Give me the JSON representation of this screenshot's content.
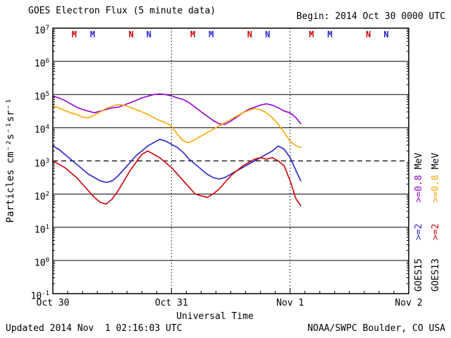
{
  "header": {
    "title": "GOES Electron Flux (5 minute data)",
    "begin": "Begin: 2014 Oct 30 0000 UTC"
  },
  "footer": {
    "updated": "Updated 2014 Nov  1 02:16:03 UTC",
    "credit": "NOAA/SWPC Boulder, CO USA"
  },
  "axes": {
    "y_title": "Particles cm⁻²s⁻¹sr⁻¹",
    "x_title": "Universal Time",
    "y_tick_exponents": [
      7,
      6,
      5,
      4,
      3,
      2,
      1,
      0,
      -1
    ],
    "x_tick_labels": [
      "Oct 30",
      "Oct 31",
      "Nov 1",
      "Nov 2"
    ]
  },
  "legend": {
    "columns": [
      {
        "satellite": "GOES15",
        "entries": [
          {
            "label": ">=2",
            "color": "#2222CC"
          },
          {
            "label": ">=0.8",
            "color": "#9400D3"
          }
        ],
        "unit": "MeV"
      },
      {
        "satellite": "GOES13",
        "entries": [
          {
            "label": ">=2",
            "color": "#CC0000"
          },
          {
            "label": ">=0.8",
            "color": "#FFA500"
          }
        ],
        "unit": "MeV"
      }
    ]
  },
  "markers": [
    {
      "label": "M",
      "day": 0.18,
      "color": "#CC0000"
    },
    {
      "label": "M",
      "day": 0.335,
      "color": "#2222CC"
    },
    {
      "label": "N",
      "day": 0.66,
      "color": "#CC0000"
    },
    {
      "label": "N",
      "day": 0.81,
      "color": "#2222CC"
    },
    {
      "label": "M",
      "day": 1.18,
      "color": "#CC0000"
    },
    {
      "label": "M",
      "day": 1.335,
      "color": "#2222CC"
    },
    {
      "label": "N",
      "day": 1.66,
      "color": "#CC0000"
    },
    {
      "label": "N",
      "day": 1.81,
      "color": "#2222CC"
    },
    {
      "label": "M",
      "day": 2.18,
      "color": "#CC0000"
    },
    {
      "label": "M",
      "day": 2.335,
      "color": "#2222CC"
    },
    {
      "label": "N",
      "day": 2.66,
      "color": "#CC0000"
    },
    {
      "label": "N",
      "day": 2.81,
      "color": "#2222CC"
    }
  ],
  "chart_data": {
    "type": "line",
    "title": "GOES Electron Flux (5 minute data)",
    "x_unit": "days since 2014 Oct 30 0000 UTC",
    "x_range": [
      0,
      3
    ],
    "y_scale": "log10",
    "y_range_exponents": [
      -1,
      7
    ],
    "ylabel": "Particles cm^-2 s^-1 sr^-1",
    "xlabel": "Universal Time",
    "threshold_flux": 1000,
    "day_boundaries": [
      1,
      2
    ],
    "grid": "decade-horizontal-solid, day-vertical-dotted",
    "x": [
      0,
      0.05,
      0.1,
      0.15,
      0.2,
      0.25,
      0.3,
      0.35,
      0.4,
      0.45,
      0.5,
      0.55,
      0.6,
      0.65,
      0.7,
      0.75,
      0.8,
      0.85,
      0.9,
      0.95,
      1,
      1.05,
      1.1,
      1.15,
      1.2,
      1.25,
      1.3,
      1.35,
      1.4,
      1.45,
      1.5,
      1.55,
      1.6,
      1.65,
      1.7,
      1.75,
      1.8,
      1.85,
      1.9,
      1.95,
      2,
      2.05,
      2.09
    ],
    "series": [
      {
        "name": "GOES15 >=0.8 MeV",
        "color": "#9400D3",
        "log10_flux": [
          4.95,
          4.9,
          4.82,
          4.72,
          4.62,
          4.55,
          4.5,
          4.45,
          4.5,
          4.55,
          4.6,
          4.62,
          4.68,
          4.75,
          4.82,
          4.9,
          4.95,
          5.0,
          5.02,
          5.0,
          4.96,
          4.9,
          4.85,
          4.75,
          4.62,
          4.48,
          4.35,
          4.22,
          4.12,
          4.1,
          4.2,
          4.32,
          4.45,
          4.55,
          4.62,
          4.68,
          4.72,
          4.68,
          4.6,
          4.5,
          4.45,
          4.3,
          4.12
        ]
      },
      {
        "name": "GOES13 >=0.8 MeV",
        "color": "#FFA500",
        "log10_flux": [
          4.65,
          4.6,
          4.52,
          4.45,
          4.4,
          4.32,
          4.3,
          4.38,
          4.48,
          4.58,
          4.65,
          4.7,
          4.68,
          4.62,
          4.55,
          4.48,
          4.4,
          4.3,
          4.22,
          4.15,
          4.05,
          3.8,
          3.6,
          3.55,
          3.65,
          3.75,
          3.85,
          3.95,
          4.05,
          4.15,
          4.25,
          4.35,
          4.45,
          4.52,
          4.58,
          4.55,
          4.45,
          4.3,
          4.1,
          3.85,
          3.6,
          3.45,
          3.4
        ]
      },
      {
        "name": "GOES15 >=2 MeV",
        "color": "#2222CC",
        "log10_flux": [
          3.45,
          3.35,
          3.2,
          3.05,
          2.9,
          2.75,
          2.6,
          2.5,
          2.4,
          2.35,
          2.4,
          2.55,
          2.75,
          2.95,
          3.15,
          3.3,
          3.45,
          3.55,
          3.65,
          3.6,
          3.5,
          3.4,
          3.25,
          3.05,
          2.9,
          2.75,
          2.6,
          2.5,
          2.45,
          2.5,
          2.6,
          2.7,
          2.8,
          2.9,
          3.0,
          3.1,
          3.2,
          3.3,
          3.45,
          3.35,
          3.1,
          2.7,
          2.4
        ]
      },
      {
        "name": "GOES13 >=2 MeV",
        "color": "#CC0000",
        "log10_flux": [
          3.0,
          2.9,
          2.8,
          2.65,
          2.5,
          2.3,
          2.1,
          1.9,
          1.75,
          1.7,
          1.85,
          2.1,
          2.4,
          2.7,
          2.95,
          3.2,
          3.3,
          3.2,
          3.1,
          2.95,
          2.8,
          2.6,
          2.4,
          2.2,
          2.0,
          1.95,
          1.9,
          2.0,
          2.15,
          2.35,
          2.55,
          2.7,
          2.85,
          2.95,
          3.05,
          3.1,
          3.05,
          3.1,
          3.0,
          2.85,
          2.4,
          1.85,
          1.65
        ]
      }
    ]
  }
}
